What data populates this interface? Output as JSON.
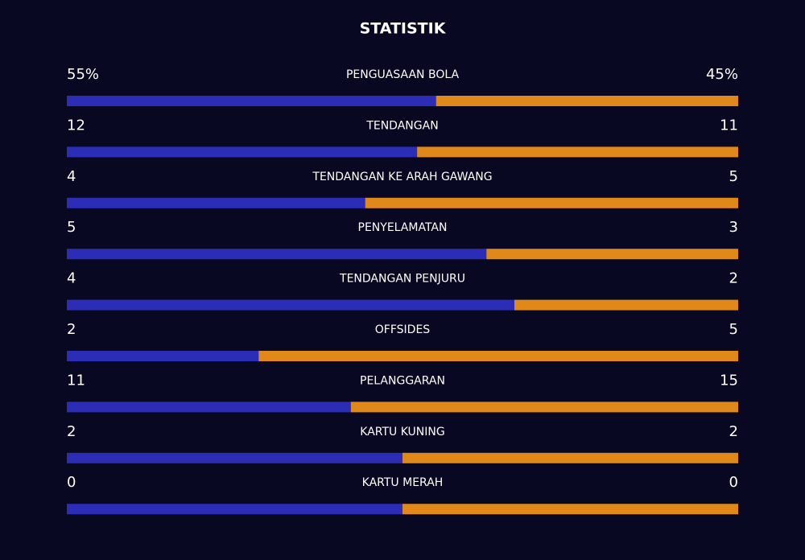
{
  "title": "STATISTIK",
  "home_color": "#2b2db7",
  "away_color": "#e0891a",
  "stats": [
    {
      "label": "PENGUASAAN BOLA",
      "home": 55,
      "home_label": "55%",
      "away": 45,
      "away_label": "45%"
    },
    {
      "label": "TENDANGAN",
      "home": 12,
      "away": 11
    },
    {
      "label": "TENDANGAN KE ARAH GAWANG",
      "home": 4,
      "away": 5
    },
    {
      "label": "PENYELAMATAN",
      "home": 5,
      "away": 3
    },
    {
      "label": "TENDANGAN PENJURU",
      "home": 4,
      "away": 2
    },
    {
      "label": "OFFSIDES",
      "home": 2,
      "away": 5
    },
    {
      "label": "PELANGGARAN",
      "home": 11,
      "away": 15
    },
    {
      "label": "KARTU KUNING",
      "home": 2,
      "away": 2
    },
    {
      "label": "KARTU MERAH",
      "home": 0,
      "away": 0
    }
  ]
}
